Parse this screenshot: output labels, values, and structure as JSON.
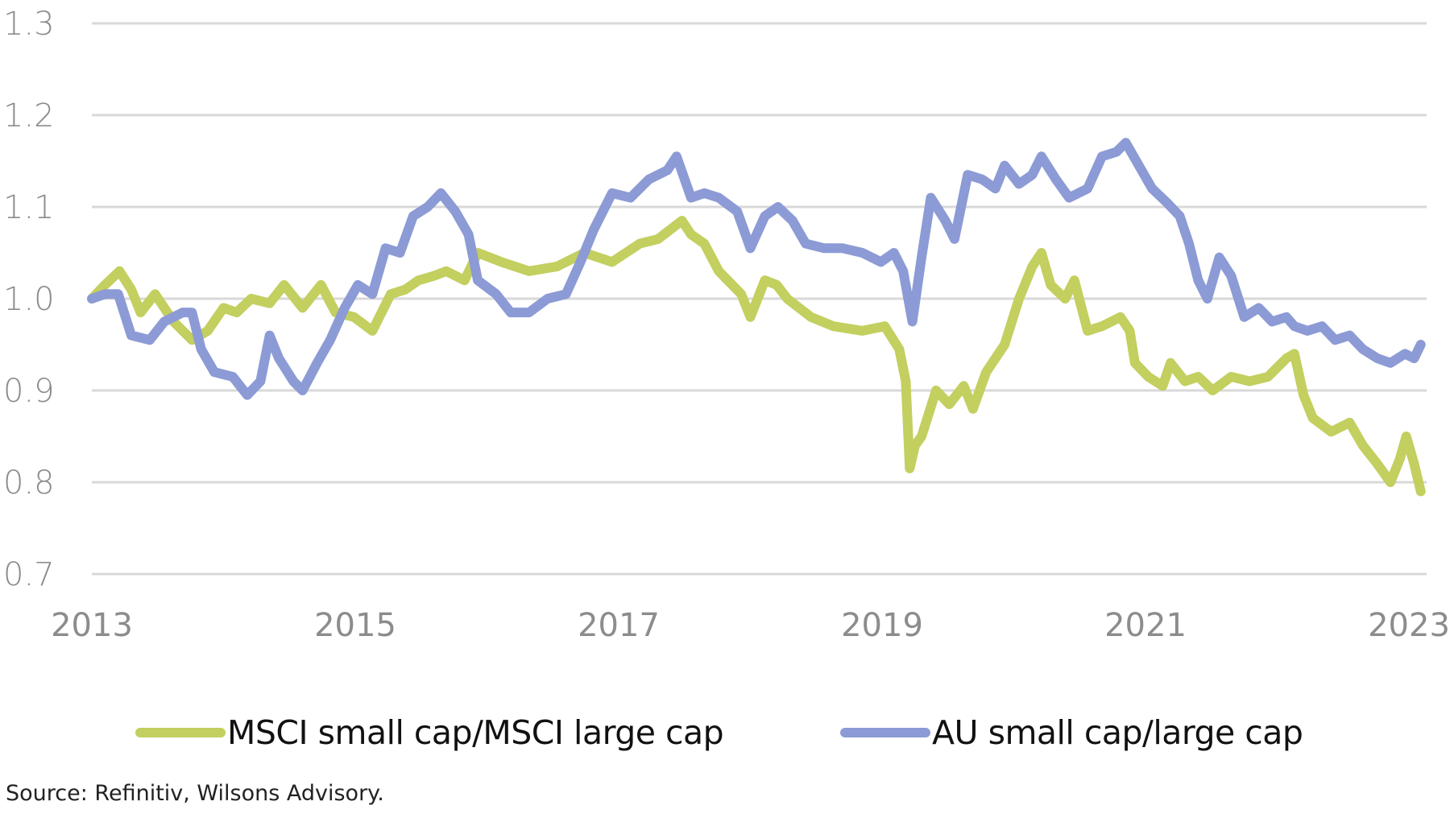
{
  "chart_data": {
    "type": "line",
    "title": "",
    "xlabel": "",
    "ylabel": "",
    "xlim": [
      2013,
      2023.1
    ],
    "ylim": [
      0.7,
      1.3
    ],
    "yticks": [
      "1.3",
      "1.2",
      "1.1",
      "1.0",
      "0.9",
      "0.8",
      "0.7"
    ],
    "ytick_values": [
      1.3,
      1.2,
      1.1,
      1.0,
      0.9,
      0.8,
      0.7
    ],
    "xticks": [
      "2013",
      "2015",
      "2017",
      "2019",
      "2021",
      "2023"
    ],
    "xtick_values": [
      2013,
      2015,
      2017,
      2019,
      2021,
      2023
    ],
    "grid": true,
    "legend_position": "bottom",
    "series": [
      {
        "name": "MSCI small cap/MSCI large cap",
        "color": "#C3CF5F",
        "x": [
          2013.0,
          2013.1,
          2013.21,
          2013.3,
          2013.37,
          2013.48,
          2013.62,
          2013.76,
          2013.88,
          2014.0,
          2014.1,
          2014.21,
          2014.35,
          2014.46,
          2014.6,
          2014.74,
          2014.85,
          2014.99,
          2015.13,
          2015.27,
          2015.38,
          2015.48,
          2015.6,
          2015.69,
          2015.83,
          2015.93,
          2016.11,
          2016.32,
          2016.53,
          2016.74,
          2016.95,
          2017.16,
          2017.3,
          2017.48,
          2017.55,
          2017.65,
          2017.76,
          2017.93,
          2018.0,
          2018.11,
          2018.2,
          2018.28,
          2018.46,
          2018.63,
          2018.85,
          2019.02,
          2019.13,
          2019.18,
          2019.21,
          2019.25,
          2019.3,
          2019.41,
          2019.51,
          2019.62,
          2019.69,
          2019.79,
          2019.93,
          2020.04,
          2020.14,
          2020.21,
          2020.28,
          2020.39,
          2020.46,
          2020.56,
          2020.67,
          2020.81,
          2020.88,
          2020.92,
          2021.02,
          2021.13,
          2021.19,
          2021.3,
          2021.4,
          2021.51,
          2021.65,
          2021.79,
          2021.93,
          2022.07,
          2022.13,
          2022.2,
          2022.27,
          2022.41,
          2022.55,
          2022.65,
          2022.76,
          2022.86,
          2022.93,
          2022.98,
          2023.04,
          2023.09
        ],
        "values": [
          1.0,
          1.015,
          1.03,
          1.01,
          0.985,
          1.005,
          0.975,
          0.955,
          0.965,
          0.99,
          0.985,
          1.0,
          0.995,
          1.015,
          0.99,
          1.015,
          0.985,
          0.98,
          0.965,
          1.005,
          1.01,
          1.02,
          1.025,
          1.03,
          1.02,
          1.05,
          1.04,
          1.03,
          1.035,
          1.05,
          1.04,
          1.06,
          1.065,
          1.085,
          1.07,
          1.06,
          1.03,
          1.005,
          0.98,
          1.02,
          1.015,
          1.0,
          0.98,
          0.97,
          0.965,
          0.97,
          0.945,
          0.91,
          0.815,
          0.84,
          0.85,
          0.9,
          0.885,
          0.905,
          0.88,
          0.92,
          0.95,
          1.0,
          1.035,
          1.05,
          1.015,
          1.0,
          1.02,
          0.965,
          0.97,
          0.98,
          0.965,
          0.93,
          0.915,
          0.905,
          0.93,
          0.91,
          0.915,
          0.9,
          0.915,
          0.91,
          0.915,
          0.935,
          0.94,
          0.895,
          0.87,
          0.855,
          0.865,
          0.84,
          0.82,
          0.8,
          0.825,
          0.85,
          0.82,
          0.79
        ]
      },
      {
        "name": "AU small cap/large cap",
        "color": "#8C9BD5",
        "x": [
          2013.0,
          2013.1,
          2013.2,
          2013.3,
          2013.44,
          2013.55,
          2013.69,
          2013.76,
          2013.83,
          2013.93,
          2014.07,
          2014.18,
          2014.28,
          2014.35,
          2014.42,
          2014.53,
          2014.6,
          2014.71,
          2014.81,
          2014.92,
          2015.02,
          2015.13,
          2015.23,
          2015.34,
          2015.44,
          2015.55,
          2015.65,
          2015.76,
          2015.86,
          2015.93,
          2016.07,
          2016.18,
          2016.32,
          2016.46,
          2016.6,
          2016.71,
          2016.81,
          2016.95,
          2017.09,
          2017.23,
          2017.37,
          2017.44,
          2017.55,
          2017.65,
          2017.76,
          2017.9,
          2018.0,
          2018.11,
          2018.21,
          2018.32,
          2018.42,
          2018.56,
          2018.7,
          2018.85,
          2018.99,
          2019.09,
          2019.16,
          2019.23,
          2019.3,
          2019.37,
          2019.48,
          2019.55,
          2019.65,
          2019.76,
          2019.86,
          2019.93,
          2020.04,
          2020.14,
          2020.21,
          2020.32,
          2020.42,
          2020.56,
          2020.67,
          2020.78,
          2020.85,
          2020.95,
          2021.05,
          2021.16,
          2021.26,
          2021.33,
          2021.4,
          2021.47,
          2021.56,
          2021.65,
          2021.75,
          2021.86,
          2021.96,
          2022.07,
          2022.13,
          2022.23,
          2022.34,
          2022.44,
          2022.55,
          2022.65,
          2022.76,
          2022.86,
          2022.97,
          2023.04,
          2023.09
        ],
        "values": [
          1.0,
          1.005,
          1.005,
          0.96,
          0.955,
          0.975,
          0.985,
          0.985,
          0.945,
          0.92,
          0.915,
          0.895,
          0.91,
          0.96,
          0.935,
          0.91,
          0.9,
          0.93,
          0.955,
          0.99,
          1.015,
          1.005,
          1.055,
          1.05,
          1.09,
          1.1,
          1.115,
          1.095,
          1.07,
          1.02,
          1.005,
          0.985,
          0.985,
          1.0,
          1.005,
          1.04,
          1.075,
          1.115,
          1.11,
          1.13,
          1.14,
          1.155,
          1.11,
          1.115,
          1.11,
          1.095,
          1.055,
          1.09,
          1.1,
          1.085,
          1.06,
          1.055,
          1.055,
          1.05,
          1.04,
          1.05,
          1.03,
          0.975,
          1.045,
          1.11,
          1.085,
          1.065,
          1.135,
          1.13,
          1.12,
          1.145,
          1.125,
          1.135,
          1.155,
          1.13,
          1.11,
          1.12,
          1.155,
          1.16,
          1.17,
          1.145,
          1.12,
          1.105,
          1.09,
          1.06,
          1.02,
          1.0,
          1.045,
          1.025,
          0.98,
          0.99,
          0.975,
          0.98,
          0.97,
          0.965,
          0.97,
          0.955,
          0.96,
          0.945,
          0.935,
          0.93,
          0.94,
          0.935,
          0.95
        ]
      }
    ]
  },
  "legend": {
    "items": [
      {
        "label": "MSCI small cap/MSCI large cap",
        "color": "#C3CF5F"
      },
      {
        "label": "AU small cap/large cap",
        "color": "#8C9BD5"
      }
    ]
  },
  "source": "Source: Refinitiv, Wilsons Advisory."
}
